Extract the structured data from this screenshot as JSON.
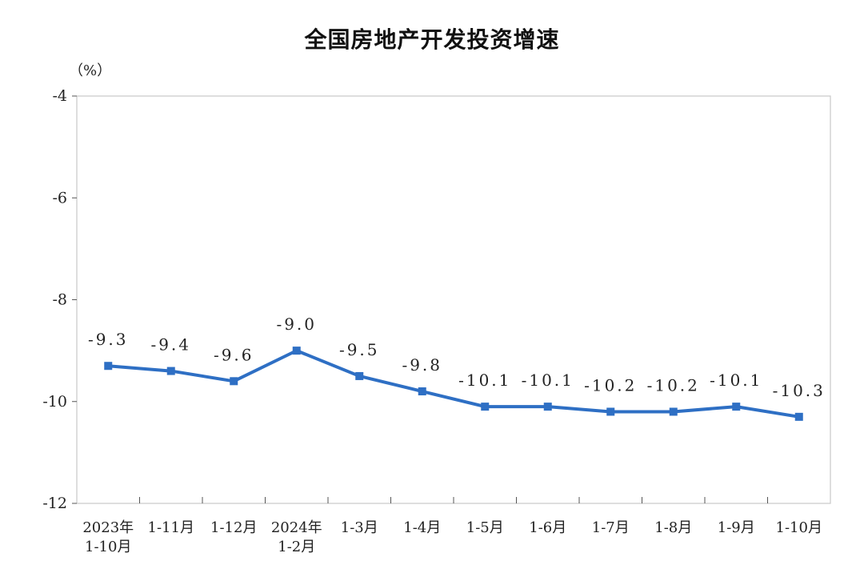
{
  "chart_data": {
    "type": "line",
    "title": "全国房地产开发投资增速",
    "unit": "（%）",
    "categories": [
      "2023年\n1-10月",
      "1-11月",
      "1-12月",
      "2024年\n1-2月",
      "1-3月",
      "1-4月",
      "1-5月",
      "1-6月",
      "1-7月",
      "1-8月",
      "1-9月",
      "1-10月"
    ],
    "values": [
      -9.3,
      -9.4,
      -9.6,
      -9.0,
      -9.5,
      -9.8,
      -10.1,
      -10.1,
      -10.2,
      -10.2,
      -10.1,
      -10.3
    ],
    "data_labels": [
      "-9.3",
      "-9.4",
      "-9.6",
      "-9.0",
      "-9.5",
      "-9.8",
      "-10.1",
      "-10.1",
      "-10.2",
      "-10.2",
      "-10.1",
      "-10.3"
    ],
    "yticks": [
      "-4",
      "-6",
      "-8",
      "-10",
      "-12"
    ],
    "ylim": [
      -12,
      -4
    ],
    "grid": false,
    "line_color": "#2e6fc4",
    "marker": "square"
  }
}
